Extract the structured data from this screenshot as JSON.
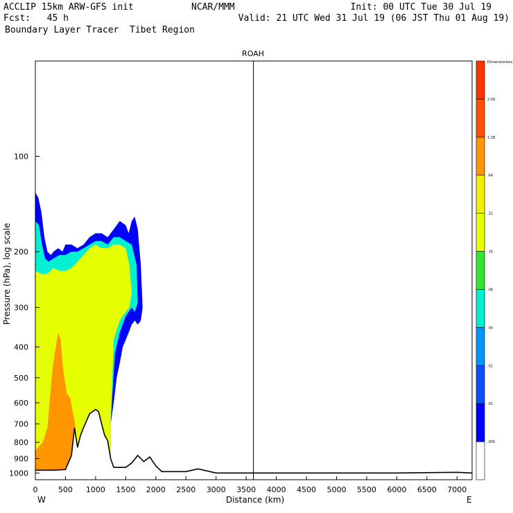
{
  "header": {
    "left_line1": "ACCLIP 15km ARW-GFS init",
    "left_line2": "Fcst:   45 h",
    "left_line3": "Boundary Layer Tracer  Tibet Region",
    "center_line1": "NCAR/MMM",
    "right_line1": "Init: 00 UTC Tue 30 Jul 19",
    "right_line2": "Valid: 21 UTC Wed 31 Jul 19 (06 JST Thu 01 Aug 19)"
  },
  "chart_data": {
    "type": "heatmap",
    "title": "ROAH",
    "xlabel": "Distance (km)",
    "ylabel": "Pressure (hPa), log scale",
    "x_start_label": "W",
    "x_end_label": "E",
    "xlim": [
      0,
      7250
    ],
    "ylim": [
      1050,
      50
    ],
    "y_scale": "log",
    "x_ticks": [
      0,
      500,
      1000,
      1500,
      2000,
      2500,
      3000,
      3500,
      4000,
      4500,
      5000,
      5500,
      6000,
      6500,
      7000
    ],
    "y_ticks": [
      100,
      200,
      300,
      400,
      500,
      600,
      700,
      800,
      900,
      1000
    ],
    "marker_x": 3620,
    "colorbar": {
      "title": "Dimensionless",
      "levels": [
        ".005",
        ".01",
        ".02",
        ".04",
        ".08",
        ".16",
        ".32",
        ".64",
        "1.28",
        "2.56"
      ],
      "colors": [
        "#ffffff",
        "#0000ff",
        "#0a50ff",
        "#0096ff",
        "#00f0d2",
        "#32e632",
        "#e6ff00",
        "#f0f000",
        "#ff9600",
        "#ff5000",
        "#ff3200"
      ]
    },
    "terrain": {
      "distance_km": [
        0,
        300,
        500,
        600,
        650,
        700,
        750,
        800,
        900,
        1000,
        1050,
        1100,
        1150,
        1200,
        1250,
        1300,
        1400,
        1500,
        1600,
        1700,
        1800,
        1900,
        2000,
        2100,
        2200,
        2500,
        2700,
        2900,
        3000,
        4000,
        5000,
        6000,
        7000,
        7250
      ],
      "pressure_hpa": [
        980,
        980,
        975,
        880,
        720,
        830,
        760,
        720,
        650,
        630,
        640,
        700,
        760,
        790,
        900,
        960,
        960,
        960,
        930,
        880,
        920,
        890,
        950,
        990,
        990,
        990,
        970,
        990,
        1000,
        1000,
        1000,
        1000,
        995,
        1000
      ]
    },
    "tracer_shading": [
      {
        "level": "0.01",
        "color": "#0000ff",
        "distance_km": [
          0,
          50,
          100,
          150,
          200,
          260,
          300,
          380,
          450,
          500,
          600,
          700,
          800,
          900,
          1000,
          1100,
          1200,
          1300,
          1400,
          1500,
          1550,
          1600,
          1650,
          1700,
          1750,
          1780,
          1750,
          1700,
          1650,
          1600,
          1550,
          1500,
          1450,
          1400,
          1350,
          1300,
          1250
        ],
        "pressure_hpa": [
          130,
          135,
          150,
          180,
          200,
          205,
          200,
          195,
          200,
          190,
          190,
          195,
          190,
          180,
          175,
          175,
          180,
          170,
          160,
          165,
          175,
          160,
          155,
          170,
          220,
          300,
          330,
          340,
          330,
          340,
          360,
          380,
          400,
          450,
          500,
          600,
          700
        ]
      },
      {
        "level": "0.08",
        "color": "#00f0d2",
        "distance_km": [
          0,
          60,
          110,
          160,
          220,
          300,
          400,
          500,
          600,
          700,
          800,
          900,
          1000,
          1100,
          1200,
          1300,
          1400,
          1500,
          1600,
          1680,
          1700,
          1650,
          1600,
          1500,
          1400,
          1320,
          1250
        ],
        "pressure_hpa": [
          160,
          165,
          190,
          210,
          215,
          210,
          205,
          205,
          200,
          200,
          195,
          190,
          185,
          185,
          190,
          180,
          180,
          185,
          190,
          220,
          290,
          310,
          300,
          320,
          360,
          420,
          700
        ]
      },
      {
        "level": "0.32",
        "color": "#e6ff00",
        "distance_km": [
          0,
          100,
          200,
          300,
          400,
          500,
          600,
          700,
          800,
          900,
          1000,
          1100,
          1200,
          1300,
          1400,
          1500,
          1560,
          1600,
          1560,
          1500,
          1400,
          1300,
          1250
        ],
        "pressure_hpa": [
          230,
          235,
          235,
          225,
          230,
          230,
          225,
          215,
          205,
          195,
          190,
          195,
          195,
          190,
          190,
          195,
          220,
          270,
          300,
          310,
          330,
          380,
          700
        ]
      },
      {
        "level": "1.28",
        "color": "#ff9600",
        "distance_km": [
          0,
          120,
          200,
          280,
          320,
          380,
          420,
          460,
          520,
          580,
          620,
          660,
          700,
          650,
          600,
          500,
          400,
          300,
          200,
          100,
          0
        ],
        "pressure_hpa": [
          850,
          800,
          720,
          480,
          420,
          360,
          380,
          470,
          560,
          580,
          640,
          700,
          880,
          960,
          975,
          980,
          980,
          980,
          980,
          980,
          980
        ]
      }
    ]
  }
}
